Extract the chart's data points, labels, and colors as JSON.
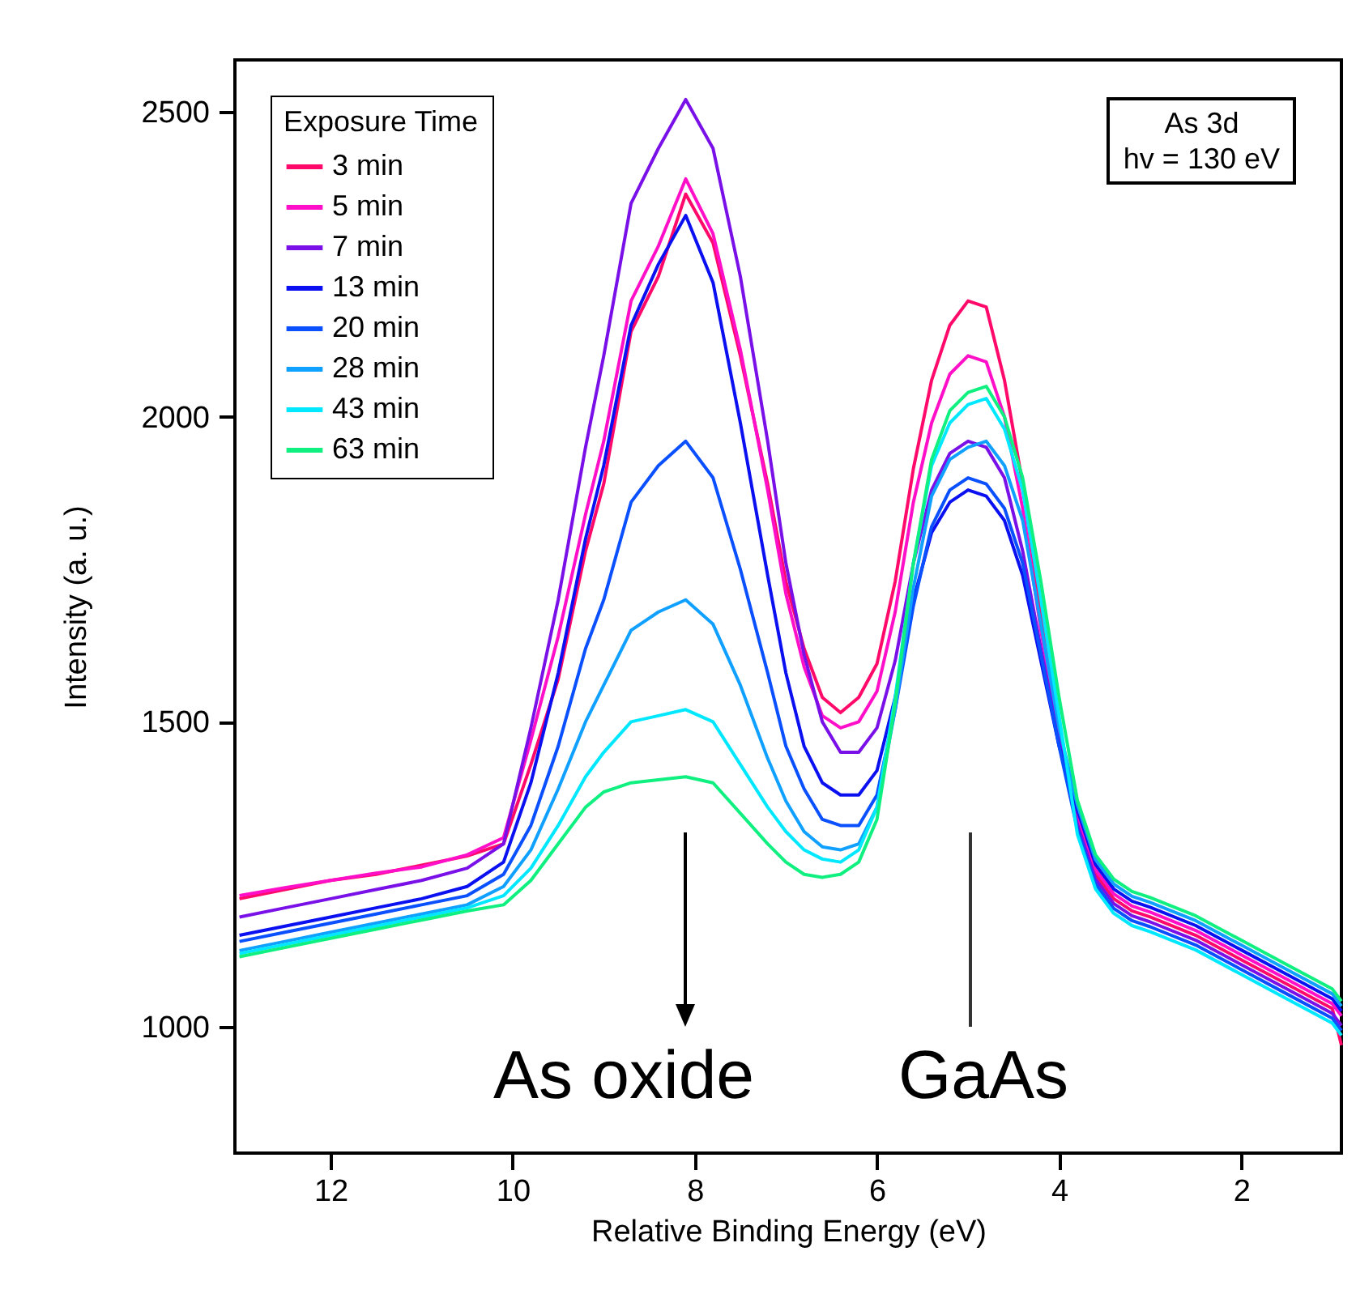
{
  "chart_data": {
    "type": "line",
    "xlabel": "Relative Binding Energy (eV)",
    "ylabel": "Intensity (a. u.)",
    "legend_title": "Exposure Time",
    "legend": "top left",
    "xlim": [
      13.05,
      0.9
    ],
    "xticks": [
      12,
      10,
      8,
      6,
      4,
      2
    ],
    "ylim": [
      793,
      2585
    ],
    "yticks": [
      1000,
      1500,
      2000,
      2500
    ],
    "x": [
      13,
      12.5,
      12,
      11.5,
      11,
      10.5,
      10.1,
      9.8,
      9.5,
      9.2,
      9,
      8.7,
      8.4,
      8.1,
      7.8,
      7.5,
      7.2,
      7,
      6.8,
      6.6,
      6.4,
      6.2,
      6,
      5.8,
      5.6,
      5.4,
      5.2,
      5,
      4.8,
      4.6,
      4.4,
      4.2,
      4,
      3.8,
      3.6,
      3.4,
      3.2,
      3,
      2.5,
      2,
      1.5,
      1,
      0.9
    ],
    "series": [
      {
        "name": "3 min",
        "color": "#ff0a6a",
        "values": [
          1210,
          1225,
          1240,
          1250,
          1265,
          1280,
          1300,
          1430,
          1570,
          1780,
          1890,
          2140,
          2230,
          2365,
          2285,
          2100,
          1890,
          1730,
          1620,
          1540,
          1515,
          1540,
          1595,
          1730,
          1915,
          2060,
          2150,
          2190,
          2180,
          2060,
          1890,
          1675,
          1490,
          1340,
          1250,
          1210,
          1190,
          1180,
          1150,
          1110,
          1070,
          1030,
          970
        ]
      },
      {
        "name": "5 min",
        "color": "#ff10c8",
        "values": [
          1215,
          1228,
          1240,
          1252,
          1262,
          1282,
          1310,
          1470,
          1640,
          1840,
          1960,
          2190,
          2280,
          2390,
          2300,
          2110,
          1880,
          1710,
          1590,
          1510,
          1490,
          1500,
          1550,
          1680,
          1860,
          1990,
          2070,
          2100,
          2090,
          2000,
          1850,
          1650,
          1480,
          1348,
          1258,
          1218,
          1198,
          1188,
          1158,
          1118,
          1078,
          1038,
          1018
        ]
      },
      {
        "name": "7 min",
        "color": "#7a10e8",
        "values": [
          1180,
          1195,
          1210,
          1225,
          1240,
          1260,
          1300,
          1490,
          1700,
          1950,
          2100,
          2350,
          2440,
          2520,
          2440,
          2230,
          1960,
          1760,
          1610,
          1500,
          1450,
          1450,
          1490,
          1600,
          1760,
          1880,
          1940,
          1960,
          1950,
          1900,
          1780,
          1620,
          1470,
          1332,
          1242,
          1202,
          1182,
          1172,
          1142,
          1102,
          1062,
          1022,
          1002
        ]
      },
      {
        "name": "13 min",
        "color": "#0a10f0",
        "values": [
          1150,
          1165,
          1180,
          1195,
          1210,
          1230,
          1270,
          1400,
          1580,
          1800,
          1920,
          2150,
          2250,
          2330,
          2220,
          1990,
          1740,
          1580,
          1460,
          1400,
          1380,
          1380,
          1420,
          1540,
          1700,
          1810,
          1860,
          1880,
          1870,
          1830,
          1740,
          1600,
          1460,
          1356,
          1266,
          1226,
          1206,
          1196,
          1166,
          1126,
          1086,
          1046,
          1026
        ]
      },
      {
        "name": "20 min",
        "color": "#0a50ff",
        "values": [
          1140,
          1155,
          1170,
          1185,
          1200,
          1215,
          1250,
          1330,
          1460,
          1620,
          1700,
          1860,
          1920,
          1960,
          1900,
          1750,
          1580,
          1460,
          1390,
          1340,
          1330,
          1330,
          1380,
          1520,
          1690,
          1820,
          1880,
          1900,
          1890,
          1850,
          1760,
          1610,
          1460,
          1324,
          1234,
          1194,
          1174,
          1164,
          1134,
          1094,
          1054,
          1014,
          994
        ]
      },
      {
        "name": "28 min",
        "color": "#10a0ff",
        "values": [
          1125,
          1140,
          1155,
          1170,
          1185,
          1200,
          1230,
          1290,
          1390,
          1500,
          1560,
          1650,
          1680,
          1700,
          1660,
          1560,
          1440,
          1370,
          1320,
          1295,
          1290,
          1300,
          1360,
          1520,
          1720,
          1870,
          1930,
          1950,
          1960,
          1920,
          1830,
          1660,
          1490,
          1364,
          1274,
          1234,
          1214,
          1204,
          1174,
          1134,
          1094,
          1054,
          1034
        ]
      },
      {
        "name": "43 min",
        "color": "#00e8ff",
        "values": [
          1120,
          1135,
          1150,
          1165,
          1180,
          1195,
          1215,
          1260,
          1330,
          1410,
          1450,
          1500,
          1510,
          1520,
          1500,
          1430,
          1360,
          1320,
          1290,
          1275,
          1270,
          1290,
          1360,
          1540,
          1760,
          1920,
          1990,
          2020,
          2030,
          1980,
          1880,
          1700,
          1510,
          1316,
          1226,
          1186,
          1166,
          1156,
          1126,
          1086,
          1046,
          1006,
          986
        ]
      },
      {
        "name": "63 min",
        "color": "#10f080",
        "values": [
          1115,
          1130,
          1145,
          1160,
          1175,
          1190,
          1200,
          1240,
          1300,
          1360,
          1385,
          1400,
          1405,
          1410,
          1400,
          1350,
          1300,
          1270,
          1250,
          1245,
          1250,
          1270,
          1340,
          1530,
          1760,
          1930,
          2010,
          2040,
          2050,
          2000,
          1900,
          1730,
          1540,
          1372,
          1282,
          1242,
          1222,
          1212,
          1182,
          1142,
          1102,
          1062,
          1042
        ]
      }
    ],
    "annotations": [
      "As oxide",
      "GaAs",
      "As 3d\nhv = 130 eV"
    ]
  }
}
